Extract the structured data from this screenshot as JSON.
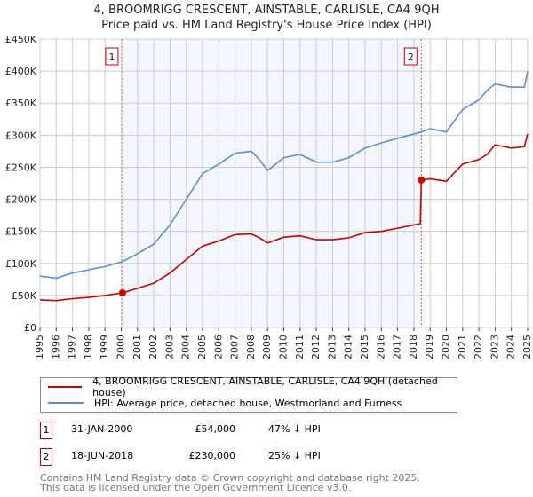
{
  "title_line1": "4, BROOMRIGG CRESCENT, AINSTABLE, CARLISLE, CA4 9QH",
  "title_line2": "Price paid vs. HM Land Registry's House Price Index (HPI)",
  "chart_data": {
    "type": "line",
    "title": "4, BROOMRIGG CRESCENT, AINSTABLE, CARLISLE, CA4 9QH — Price paid vs. HM Land Registry's House Price Index (HPI)",
    "xlim": [
      1995,
      2025
    ],
    "ylim": [
      0,
      450000
    ],
    "grid": true,
    "x_ticks": [
      "1995",
      "1996",
      "1997",
      "1998",
      "1999",
      "2000",
      "2001",
      "2002",
      "2003",
      "2004",
      "2005",
      "2006",
      "2007",
      "2008",
      "2009",
      "2010",
      "2011",
      "2012",
      "2013",
      "2014",
      "2015",
      "2016",
      "2017",
      "2018",
      "2019",
      "2020",
      "2021",
      "2022",
      "2023",
      "2024",
      "2025"
    ],
    "y_ticks": [
      {
        "v": 0,
        "label": "£0"
      },
      {
        "v": 50000,
        "label": "£50K"
      },
      {
        "v": 100000,
        "label": "£100K"
      },
      {
        "v": 150000,
        "label": "£150K"
      },
      {
        "v": 200000,
        "label": "£200K"
      },
      {
        "v": 250000,
        "label": "£250K"
      },
      {
        "v": 300000,
        "label": "£300K"
      },
      {
        "v": 350000,
        "label": "£350K"
      },
      {
        "v": 400000,
        "label": "£400K"
      },
      {
        "v": 450000,
        "label": "£450K"
      }
    ],
    "series": [
      {
        "name": "4, BROOMRIGG CRESCENT, AINSTABLE, CARLISLE, CA4 9QH (detached house)",
        "color": "#cc0000",
        "x": [
          1995,
          1996,
          1997,
          1998,
          1999,
          2000.08,
          2001,
          2002,
          2003,
          2004,
          2005,
          2006,
          2007,
          2008,
          2008.5,
          2009,
          2010,
          2011,
          2012,
          2013,
          2014,
          2015,
          2016,
          2017,
          2018.4,
          2018.46,
          2019,
          2020,
          2021,
          2022,
          2022.5,
          2023,
          2024,
          2024.8,
          2025
        ],
        "y": [
          43000,
          42000,
          45000,
          47000,
          50000,
          54000,
          61000,
          69000,
          85000,
          106000,
          127000,
          135000,
          145000,
          146000,
          140000,
          132000,
          141000,
          143000,
          137000,
          137000,
          140000,
          148000,
          150000,
          155000,
          162000,
          230000,
          232000,
          228000,
          255000,
          262000,
          270000,
          285000,
          280000,
          282000,
          302000
        ]
      },
      {
        "name": "HPI: Average price, detached house, Westmorland and Furness",
        "color": "#5b8fd4",
        "x": [
          1995,
          1996,
          1997,
          1998,
          1999,
          2000.08,
          2001,
          2002,
          2003,
          2004,
          2005,
          2006,
          2007,
          2008,
          2008.5,
          2009,
          2010,
          2011,
          2012,
          2013,
          2014,
          2015,
          2016,
          2017,
          2018.46,
          2019,
          2020,
          2021,
          2022,
          2022.5,
          2023,
          2024,
          2024.8,
          2025
        ],
        "y": [
          80000,
          77000,
          85000,
          90000,
          95000,
          103000,
          115000,
          130000,
          160000,
          200000,
          240000,
          255000,
          272000,
          275000,
          262000,
          245000,
          265000,
          270000,
          258000,
          258000,
          265000,
          280000,
          288000,
          295000,
          305000,
          310000,
          305000,
          340000,
          355000,
          370000,
          380000,
          375000,
          375000,
          400000
        ]
      }
    ],
    "shaded_range": [
      2000.08,
      2018.46
    ],
    "annotations": [
      {
        "label": "1",
        "x": 2000.08,
        "y": 54000
      },
      {
        "label": "2",
        "x": 2018.46,
        "y": 230000
      }
    ]
  },
  "legend": [
    "4, BROOMRIGG CRESCENT, AINSTABLE, CARLISLE, CA4 9QH (detached house)",
    "HPI: Average price, detached house, Westmorland and Furness"
  ],
  "transactions": [
    {
      "num": "1",
      "date": "31-JAN-2000",
      "price": "£54,000",
      "hpi": "47% ↓ HPI"
    },
    {
      "num": "2",
      "date": "18-JUN-2018",
      "price": "£230,000",
      "hpi": "25% ↓ HPI"
    }
  ],
  "footer1": "Contains HM Land Registry data © Crown copyright and database right 2025.",
  "footer2": "This data is licensed under the Open Government Licence v3.0."
}
